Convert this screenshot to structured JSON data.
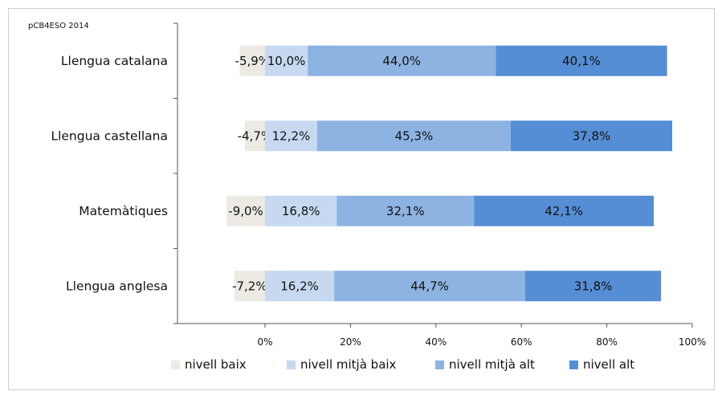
{
  "chart_data": {
    "type": "bar",
    "orientation": "horizontal",
    "stacked": true,
    "source_label": "pCB4ESO 2014",
    "categories": [
      "Llengua catalana",
      "Llengua castellana",
      "Matemàtiques",
      "Llengua anglesa"
    ],
    "series": [
      {
        "name": "nivell baix",
        "values": [
          -5.9,
          -4.7,
          -9.0,
          -7.2
        ],
        "labels": [
          "-5,9%",
          "-4,7%",
          "-9,0%",
          "-7,2%"
        ],
        "color": "#eceae2"
      },
      {
        "name": "nivell mitjà baix",
        "values": [
          10.0,
          12.2,
          16.8,
          16.2
        ],
        "labels": [
          "10,0%",
          "12,2%",
          "16,8%",
          "16,2%"
        ],
        "color": "#c6d9f1"
      },
      {
        "name": "nivell mitjà alt",
        "values": [
          44.0,
          45.3,
          32.1,
          44.7
        ],
        "labels": [
          "44,0%",
          "45,3%",
          "32,1%",
          "44,7%"
        ],
        "color": "#8db3e2"
      },
      {
        "name": "nivell alt",
        "values": [
          40.1,
          37.8,
          42.1,
          31.8
        ],
        "labels": [
          "40,1%",
          "37,8%",
          "42,1%",
          "31,8%"
        ],
        "color": "#558ed5"
      }
    ],
    "x_ticks": [
      "0%",
      "20%",
      "40%",
      "60%",
      "80%",
      "100%"
    ],
    "xlim": [
      -20,
      100
    ],
    "legend_position": "bottom",
    "grid": false
  }
}
